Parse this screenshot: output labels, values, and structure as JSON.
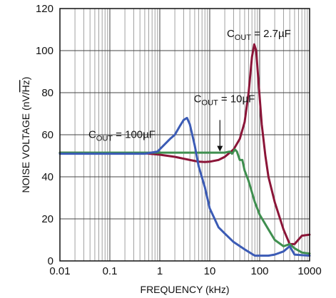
{
  "chart_data": {
    "type": "line",
    "xlabel": "FREQUENCY (kHz)",
    "ylabel_main": "NOISE VOLTAGE (nV/",
    "ylabel_root": "Hz",
    "ylabel_close": ")",
    "xscale": "log",
    "xlim": [
      0.01,
      1000
    ],
    "ylim": [
      0,
      120
    ],
    "grid": true,
    "x_ticks": [
      {
        "value": 0.01,
        "label": "0.01"
      },
      {
        "value": 0.1,
        "label": "0.1"
      },
      {
        "value": 1,
        "label": "1"
      },
      {
        "value": 10,
        "label": "10"
      },
      {
        "value": 100,
        "label": "100"
      },
      {
        "value": 1000,
        "label": "1000"
      }
    ],
    "y_ticks": [
      {
        "value": 0,
        "label": "0"
      },
      {
        "value": 20,
        "label": "20"
      },
      {
        "value": 40,
        "label": "40"
      },
      {
        "value": 60,
        "label": "60"
      },
      {
        "value": 80,
        "label": "80"
      },
      {
        "value": 100,
        "label": "100"
      },
      {
        "value": 120,
        "label": "120"
      }
    ],
    "series": [
      {
        "color": "#8b1538",
        "x": [
          0.01,
          0.5,
          1,
          2,
          4,
          6,
          8,
          10,
          15,
          20,
          30,
          40,
          50,
          60,
          70,
          78,
          85,
          95,
          110,
          130,
          150,
          200,
          300,
          400,
          500,
          700,
          1000
        ],
        "y": [
          51.5,
          51.2,
          50.5,
          49.5,
          48,
          47.2,
          47,
          47.2,
          48,
          49.5,
          53,
          58,
          66,
          80,
          97,
          103,
          100,
          85,
          65,
          50,
          40,
          28,
          15,
          8,
          8,
          12,
          12.5
        ]
      },
      {
        "color": "#3f8f4f",
        "x": [
          0.01,
          1,
          10,
          20,
          25,
          28,
          32,
          35,
          40,
          45,
          50,
          60,
          80,
          100,
          150,
          200,
          300,
          400,
          500,
          700,
          1000
        ],
        "y": [
          51.5,
          51.5,
          51.5,
          51.5,
          52,
          51,
          53,
          52,
          48,
          48,
          43,
          38,
          28,
          22,
          15,
          10,
          7,
          8,
          6,
          4,
          3.5
        ]
      },
      {
        "color": "#3b5bb5",
        "x": [
          0.01,
          0.5,
          0.9,
          1.2,
          1.6,
          2,
          2.5,
          3,
          3.5,
          4,
          5,
          6,
          8,
          10,
          15,
          20,
          30,
          50,
          80,
          100,
          150,
          200,
          300,
          400,
          500,
          1000
        ],
        "y": [
          51,
          51,
          52,
          55,
          58,
          60,
          64,
          67,
          68,
          65,
          55,
          45,
          35,
          25,
          16,
          13,
          9,
          5.5,
          2.5,
          2.5,
          2.5,
          3,
          4.5,
          7,
          3,
          2.5
        ]
      }
    ],
    "annotations": [
      {
        "main": "C",
        "sub": "OUT",
        "rest": " = 100µF",
        "x": 0.82,
        "y": 58.5,
        "anchor": "end"
      },
      {
        "main": "C",
        "sub": "OUT",
        "rest": " = 10µF",
        "x": 4.8,
        "y": 75.5,
        "anchor": "start"
      },
      {
        "main": "C",
        "sub": "OUT",
        "rest": " = 2.7µF",
        "x": 22,
        "y": 106.5,
        "anchor": "start"
      }
    ],
    "arrow": {
      "x": 16,
      "y_from": 67,
      "y_to": 52
    }
  }
}
